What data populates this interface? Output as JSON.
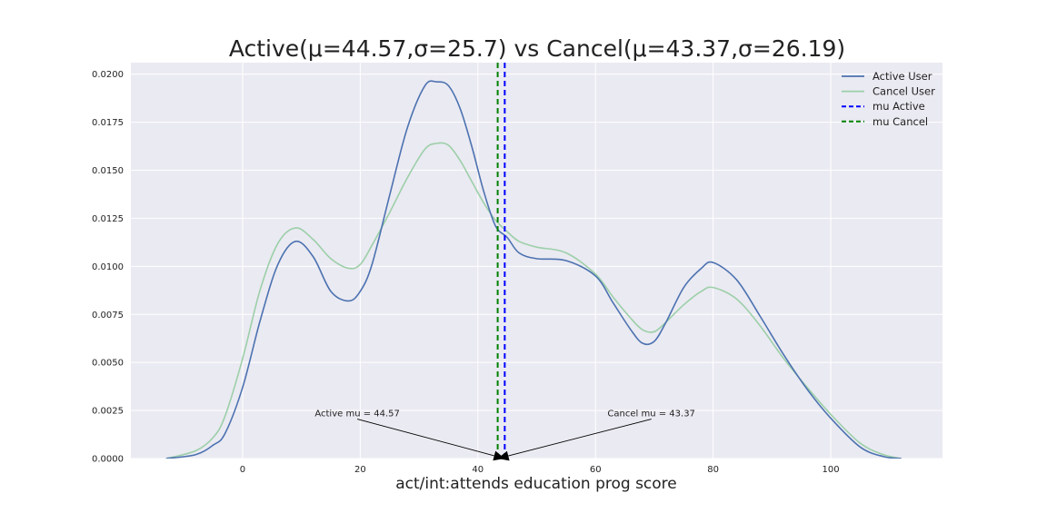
{
  "chart_data": {
    "type": "line",
    "title": "Active(μ=44.57,σ=25.7) vs Cancel(μ=43.37,σ=26.19)",
    "xlabel": "act/int:attends education prog score",
    "ylabel": "",
    "xlim": [
      -19,
      119
    ],
    "ylim": [
      0,
      0.0206
    ],
    "xticks": [
      0,
      20,
      40,
      60,
      80,
      100
    ],
    "yticks": [
      0.0,
      0.0025,
      0.005,
      0.0075,
      0.01,
      0.0125,
      0.015,
      0.0175,
      0.02
    ],
    "ytick_labels": [
      "0.0000",
      "0.0025",
      "0.0050",
      "0.0075",
      "0.0100",
      "0.0125",
      "0.0150",
      "0.0175",
      "0.0200"
    ],
    "grid": true,
    "legend_position": "top-right",
    "series": [
      {
        "name": "Active User",
        "color": "#4c72b0",
        "x": [
          -13,
          -8,
          -5,
          -3,
          0,
          3,
          6,
          9,
          12,
          15,
          18,
          20,
          22,
          25,
          28,
          31,
          33,
          35,
          37,
          39,
          41,
          43,
          45,
          47,
          50,
          55,
          60,
          63,
          66,
          68,
          70,
          72,
          75,
          78,
          80,
          84,
          88,
          92,
          96,
          100,
          105,
          109,
          112
        ],
        "y": [
          0.0,
          0.0002,
          0.0007,
          0.0013,
          0.0037,
          0.0072,
          0.0101,
          0.0113,
          0.0105,
          0.0087,
          0.0082,
          0.0087,
          0.0101,
          0.0137,
          0.0172,
          0.0194,
          0.0196,
          0.0194,
          0.0182,
          0.0162,
          0.0139,
          0.0121,
          0.0115,
          0.0107,
          0.0104,
          0.0103,
          0.0095,
          0.0081,
          0.0067,
          0.006,
          0.0061,
          0.0071,
          0.0089,
          0.0099,
          0.0102,
          0.0093,
          0.0074,
          0.0054,
          0.0036,
          0.0021,
          0.0006,
          0.0001,
          0.0
        ]
      },
      {
        "name": "Cancel User",
        "color": "#9ccfa8",
        "x": [
          -13,
          -8,
          -5,
          -3,
          0,
          3,
          6,
          9,
          12,
          15,
          18,
          20,
          22,
          25,
          28,
          31,
          33,
          35,
          37,
          39,
          41,
          43,
          45,
          47,
          50,
          55,
          60,
          63,
          66,
          68,
          70,
          72,
          75,
          78,
          80,
          84,
          88,
          92,
          96,
          100,
          105,
          109,
          112
        ],
        "y": [
          0.0,
          0.0004,
          0.0011,
          0.0022,
          0.0052,
          0.0088,
          0.0112,
          0.012,
          0.0114,
          0.0104,
          0.0099,
          0.0101,
          0.0111,
          0.0128,
          0.0146,
          0.0161,
          0.0164,
          0.0163,
          0.0155,
          0.0144,
          0.0133,
          0.0124,
          0.0118,
          0.0113,
          0.011,
          0.0107,
          0.0096,
          0.0084,
          0.0073,
          0.0067,
          0.0066,
          0.0071,
          0.008,
          0.0087,
          0.0089,
          0.0083,
          0.0069,
          0.0052,
          0.0037,
          0.0023,
          0.0008,
          0.0002,
          0.0
        ]
      }
    ],
    "vlines": [
      {
        "name": "mu Active",
        "x": 44.57,
        "color": "#0000ff",
        "dashed": true
      },
      {
        "name": "mu Cancel",
        "x": 43.37,
        "color": "#008000",
        "dashed": true
      }
    ],
    "annotations": [
      {
        "text": "Active mu = 44.57",
        "text_x": 19.5,
        "text_y": 0.0021,
        "point_x": 44.57,
        "point_y": 0.0
      },
      {
        "text": "Cancel mu = 43.37",
        "text_x": 69.5,
        "text_y": 0.0021,
        "point_x": 43.37,
        "point_y": 0.0
      }
    ]
  }
}
